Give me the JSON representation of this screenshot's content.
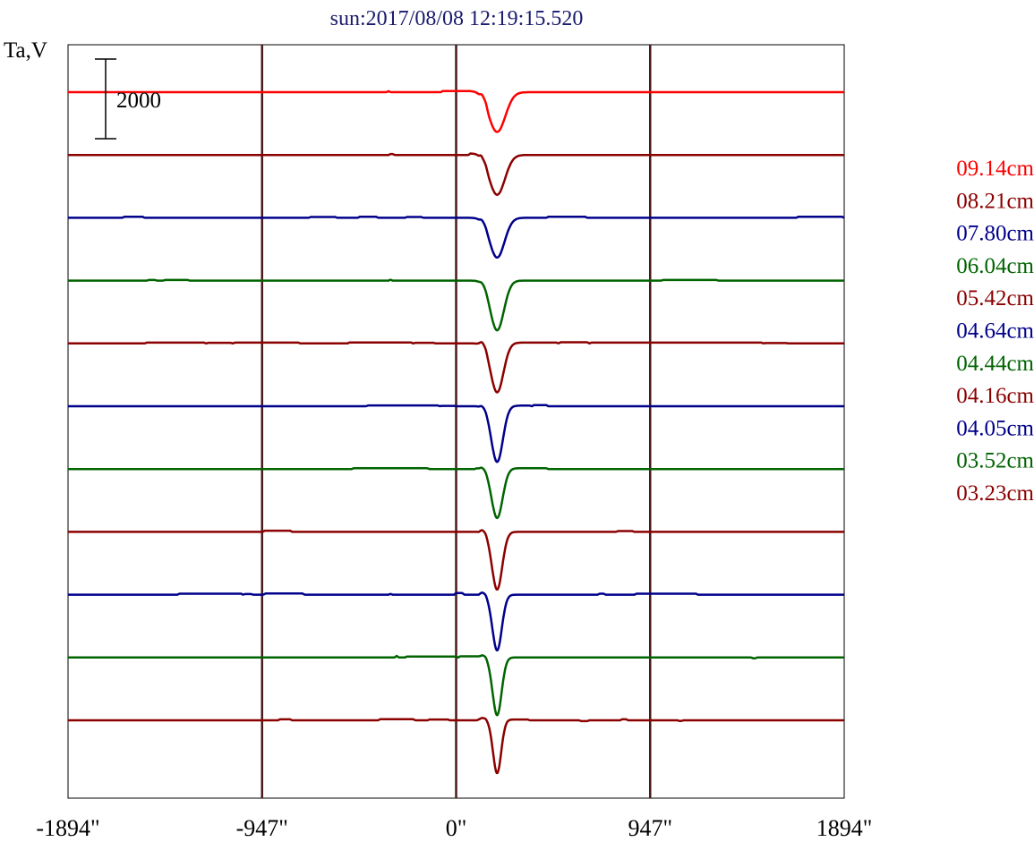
{
  "chart_data": {
    "type": "line",
    "title": "sun:2017/08/08 12:19:15.520",
    "ylabel": "Ta,V",
    "xlabel": "",
    "xlim": [
      -1894,
      1894
    ],
    "x_ticks": [
      -1894,
      -947,
      0,
      947,
      1894
    ],
    "x_tick_labels": [
      "-1894\"",
      "-947\"",
      "0\"",
      "947\"",
      "1894\""
    ],
    "vertical_lines": [
      -947,
      0,
      947
    ],
    "scale_bar": {
      "label": "2000",
      "value": 2000
    },
    "grid": false,
    "legend_position": "right",
    "series": [
      {
        "name": "09.14cm",
        "color": "#ff0000",
        "dip_center": 200,
        "dip_width": 40,
        "dip_depth": 1000,
        "pre_bump": 120,
        "steps": [
          [
            -340,
            -320,
            25
          ],
          [
            -75,
            120,
            30
          ]
        ]
      },
      {
        "name": "08.21cm",
        "color": "#8b0000",
        "dip_center": 200,
        "dip_width": 38,
        "dip_depth": 1000,
        "pre_bump": 90,
        "steps": [
          [
            -330,
            -300,
            25
          ],
          [
            60,
            130,
            40
          ]
        ]
      },
      {
        "name": "07.80cm",
        "color": "#00008b",
        "dip_center": 200,
        "dip_width": 36,
        "dip_depth": 1000,
        "pre_bump": 60,
        "steps": [
          [
            -1630,
            -1520,
            25
          ],
          [
            -720,
            -580,
            20
          ],
          [
            -480,
            -380,
            25
          ],
          [
            -250,
            -160,
            20
          ],
          [
            440,
            640,
            25
          ],
          [
            1660,
            1894,
            25
          ]
        ]
      },
      {
        "name": "06.04cm",
        "color": "#006400",
        "dip_center": 200,
        "dip_width": 33,
        "dip_depth": 1250,
        "pre_bump": 40,
        "steps": [
          [
            -1510,
            -1460,
            15
          ],
          [
            -1430,
            -1300,
            15
          ],
          [
            -330,
            -310,
            25
          ],
          [
            1000,
            1280,
            15
          ]
        ]
      },
      {
        "name": "05.42cm",
        "color": "#8b0000",
        "dip_center": 200,
        "dip_width": 31,
        "dip_depth": 1250,
        "pre_bump": 80,
        "steps": [
          [
            -1520,
            -1220,
            20
          ],
          [
            -1220,
            -1090,
            15
          ],
          [
            -1090,
            -760,
            20
          ],
          [
            -530,
            -210,
            25
          ],
          [
            -210,
            -100,
            15
          ],
          [
            100,
            500,
            20
          ],
          [
            500,
            650,
            30
          ],
          [
            650,
            1500,
            20
          ],
          [
            1500,
            1620,
            10
          ]
        ]
      },
      {
        "name": "04.64cm",
        "color": "#00008b",
        "dip_center": 200,
        "dip_width": 28,
        "dip_depth": 1400,
        "pre_bump": 40,
        "steps": [
          [
            -440,
            -80,
            20
          ],
          [
            -80,
            0,
            10
          ],
          [
            230,
            370,
            15
          ],
          [
            370,
            450,
            30
          ]
        ]
      },
      {
        "name": "04.44cm",
        "color": "#006400",
        "dip_center": 200,
        "dip_width": 27,
        "dip_depth": 1250,
        "pre_bump": 40,
        "steps": [
          [
            -510,
            -130,
            20
          ],
          [
            90,
            450,
            20
          ]
        ]
      },
      {
        "name": "04.16cm",
        "color": "#8b0000",
        "dip_center": 200,
        "dip_width": 25,
        "dip_depth": 1450,
        "pre_bump": 60,
        "steps": [
          [
            -944,
            -800,
            30
          ],
          [
            780,
            870,
            20
          ]
        ]
      },
      {
        "name": "04.05cm",
        "color": "#00008b",
        "dip_center": 200,
        "dip_width": 23,
        "dip_depth": 1400,
        "pre_bump": 60,
        "steps": [
          [
            -1360,
            -1040,
            25
          ],
          [
            -1040,
            -990,
            15
          ],
          [
            -940,
            -740,
            30
          ],
          [
            -330,
            -310,
            20
          ],
          [
            -10,
            40,
            40
          ],
          [
            690,
            730,
            25
          ],
          [
            870,
            1180,
            25
          ]
        ]
      },
      {
        "name": "03.52cm",
        "color": "#006400",
        "dip_center": 200,
        "dip_width": 22,
        "dip_depth": 1450,
        "pre_bump": 60,
        "steps": [
          [
            -300,
            -280,
            40
          ],
          [
            -250,
            10,
            25
          ],
          [
            10,
            120,
            30
          ],
          [
            1440,
            1470,
            -20
          ]
        ]
      },
      {
        "name": "03.23cm",
        "color": "#8b0000",
        "dip_center": 200,
        "dip_width": 20,
        "dip_depth": 1350,
        "pre_bump": 40,
        "steps": [
          [
            -870,
            -800,
            25
          ],
          [
            -380,
            -200,
            30
          ],
          [
            -140,
            -30,
            20
          ],
          [
            100,
            360,
            20
          ],
          [
            600,
            650,
            -20
          ],
          [
            800,
            840,
            25
          ],
          [
            1080,
            1110,
            -15
          ]
        ]
      }
    ]
  }
}
